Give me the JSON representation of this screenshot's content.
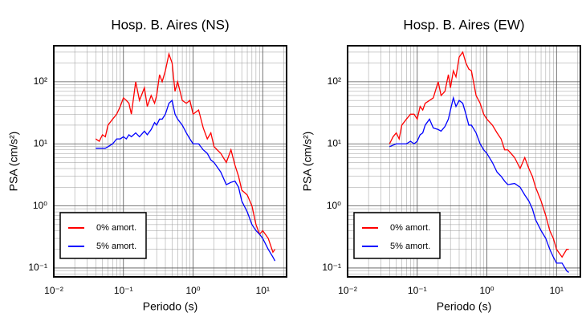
{
  "chart_data": [
    {
      "type": "line",
      "title": "Hosp. B. Aires (NS)",
      "x_label": "Periodo (s)",
      "y_label": "PSA (cm/s²)",
      "x_scale": "log",
      "y_scale": "log",
      "grid": true,
      "legend": "lower left",
      "xlim": [
        0.01,
        22
      ],
      "ylim": [
        0.072,
        380
      ],
      "xticks": [
        {
          "value": 0.01,
          "label": "10⁻²"
        },
        {
          "value": 0.1,
          "label": "10⁻¹"
        },
        {
          "value": 1,
          "label": "10⁰"
        },
        {
          "value": 10,
          "label": "10¹"
        }
      ],
      "yticks": [
        {
          "value": 0.1,
          "label": "10⁻¹"
        },
        {
          "value": 1,
          "label": "10⁰"
        },
        {
          "value": 10,
          "label": "10¹"
        },
        {
          "value": 100,
          "label": "10²"
        }
      ],
      "x": [
        0.04,
        0.045,
        0.05,
        0.055,
        0.06,
        0.07,
        0.08,
        0.09,
        0.1,
        0.11,
        0.12,
        0.13,
        0.15,
        0.17,
        0.2,
        0.22,
        0.25,
        0.28,
        0.3,
        0.33,
        0.36,
        0.4,
        0.45,
        0.5,
        0.55,
        0.6,
        0.7,
        0.8,
        0.9,
        1.0,
        1.2,
        1.4,
        1.6,
        1.8,
        2.0,
        2.5,
        3.0,
        3.5,
        4.0,
        4.5,
        5,
        6,
        7,
        8,
        9,
        10,
        12,
        14,
        15
      ],
      "series": [
        {
          "name": "0% amort.",
          "color": "#ff0000",
          "values": [
            12,
            11,
            14,
            13,
            20,
            25,
            30,
            40,
            55,
            50,
            45,
            30,
            100,
            50,
            80,
            40,
            60,
            45,
            60,
            130,
            100,
            150,
            280,
            200,
            70,
            100,
            50,
            45,
            50,
            30,
            35,
            18,
            12,
            15,
            9,
            7,
            5,
            8,
            4.5,
            3,
            1.8,
            1.5,
            1.0,
            0.5,
            0.35,
            0.4,
            0.3,
            0.18,
            0.2
          ]
        },
        {
          "name": "5% amort.",
          "color": "#0000ff",
          "values": [
            8.5,
            8.5,
            8.5,
            8.5,
            9,
            10,
            12,
            12,
            13,
            12,
            14,
            13,
            15,
            13,
            16,
            14,
            17,
            22,
            20,
            25,
            25,
            30,
            45,
            50,
            30,
            25,
            20,
            15,
            12,
            10,
            10,
            8,
            7,
            5.5,
            5,
            3.5,
            2.2,
            2.4,
            2.5,
            2,
            1.2,
            0.8,
            0.5,
            0.4,
            0.35,
            0.3,
            0.2,
            0.15,
            0.13
          ]
        }
      ]
    },
    {
      "type": "line",
      "title": "Hosp. B. Aires (EW)",
      "x_label": "Periodo (s)",
      "y_label": "PSA (cm/s²)",
      "x_scale": "log",
      "y_scale": "log",
      "grid": true,
      "legend": "lower left",
      "xlim": [
        0.01,
        22
      ],
      "ylim": [
        0.072,
        380
      ],
      "xticks": [
        {
          "value": 0.01,
          "label": "10⁻²"
        },
        {
          "value": 0.1,
          "label": "10⁻¹"
        },
        {
          "value": 1,
          "label": "10⁰"
        },
        {
          "value": 10,
          "label": "10¹"
        }
      ],
      "yticks": [
        {
          "value": 0.1,
          "label": "10⁻¹"
        },
        {
          "value": 1,
          "label": "10⁰"
        },
        {
          "value": 10,
          "label": "10¹"
        },
        {
          "value": 100,
          "label": "10²"
        }
      ],
      "x": [
        0.04,
        0.045,
        0.05,
        0.055,
        0.06,
        0.07,
        0.08,
        0.09,
        0.1,
        0.11,
        0.12,
        0.13,
        0.15,
        0.17,
        0.2,
        0.22,
        0.25,
        0.28,
        0.3,
        0.33,
        0.36,
        0.4,
        0.45,
        0.5,
        0.55,
        0.6,
        0.7,
        0.8,
        0.9,
        1.0,
        1.2,
        1.4,
        1.6,
        1.8,
        2.0,
        2.5,
        3.0,
        3.5,
        4.0,
        4.5,
        5,
        6,
        7,
        8,
        9,
        10,
        12,
        14,
        15
      ],
      "series": [
        {
          "name": "0% amort.",
          "color": "#ff0000",
          "values": [
            10,
            13,
            15,
            12,
            20,
            25,
            30,
            30,
            25,
            40,
            35,
            45,
            50,
            55,
            100,
            60,
            70,
            130,
            80,
            150,
            120,
            250,
            300,
            200,
            160,
            150,
            60,
            45,
            30,
            25,
            20,
            15,
            12,
            8,
            8,
            6,
            4,
            6,
            4,
            3,
            2,
            1.2,
            0.7,
            0.4,
            0.3,
            0.2,
            0.15,
            0.2,
            0.2
          ]
        },
        {
          "name": "5% amort.",
          "color": "#0000ff",
          "values": [
            9,
            9.5,
            10,
            10,
            10,
            10,
            11,
            10,
            11,
            14,
            15,
            20,
            25,
            18,
            17,
            16,
            19,
            25,
            35,
            55,
            40,
            50,
            45,
            30,
            20,
            20,
            15,
            10,
            8,
            7,
            5,
            3.5,
            3,
            2.5,
            2.2,
            2.3,
            2,
            1.5,
            1.2,
            0.9,
            0.6,
            0.4,
            0.3,
            0.2,
            0.15,
            0.12,
            0.12,
            0.09,
            0.085
          ]
        }
      ]
    }
  ]
}
